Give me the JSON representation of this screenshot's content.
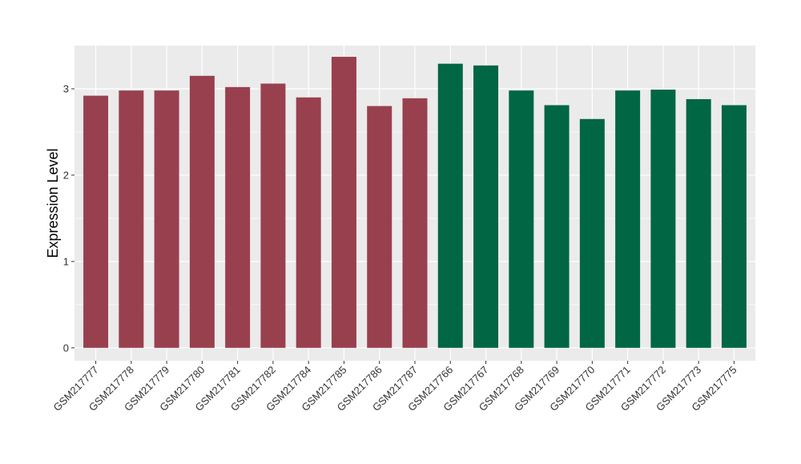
{
  "chart_data": {
    "type": "bar",
    "ylabel": "Expression Level",
    "xlabel": "",
    "ylim": [
      -0.15,
      3.5
    ],
    "yticks": [
      0,
      1,
      2,
      3
    ],
    "grid": true,
    "categories": [
      "GSM217777",
      "GSM217778",
      "GSM217779",
      "GSM217780",
      "GSM217781",
      "GSM217782",
      "GSM217784",
      "GSM217785",
      "GSM217786",
      "GSM217787",
      "GSM217766",
      "GSM217767",
      "GSM217768",
      "GSM217769",
      "GSM217770",
      "GSM217771",
      "GSM217772",
      "GSM217773",
      "GSM217775"
    ],
    "values": [
      2.92,
      2.98,
      2.98,
      3.15,
      3.02,
      3.06,
      2.9,
      3.37,
      2.8,
      2.89,
      3.29,
      3.27,
      2.98,
      2.81,
      2.65,
      2.98,
      2.99,
      2.88,
      2.81
    ],
    "groups": [
      0,
      0,
      0,
      0,
      0,
      0,
      0,
      0,
      0,
      0,
      1,
      1,
      1,
      1,
      1,
      1,
      1,
      1,
      1
    ],
    "group_colors": [
      "#99404e",
      "#006644"
    ],
    "panel_color": "#ebebeb",
    "grid_color": "#ffffff"
  }
}
